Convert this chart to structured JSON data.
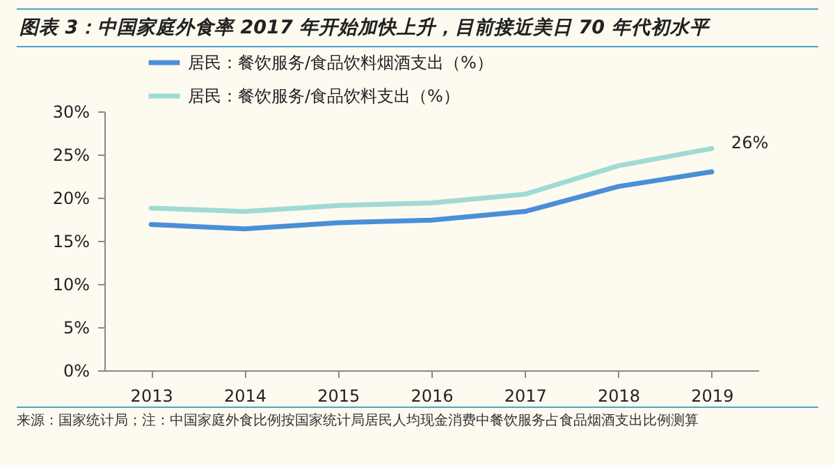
{
  "chart_data": {
    "type": "line",
    "title": "图表 3：中国家庭外食率 2017 年开始加快上升，目前接近美日 70 年代初水平",
    "categories": [
      "2013",
      "2014",
      "2015",
      "2016",
      "2017",
      "2018",
      "2019"
    ],
    "series": [
      {
        "name": "居民：餐饮服务/食品饮料烟酒支出（%）",
        "color": "#4a8fd6",
        "values": [
          16.9,
          16.4,
          17.1,
          17.4,
          18.4,
          21.3,
          23.0
        ]
      },
      {
        "name": "居民：餐饮服务/食品饮料支出（%）",
        "color": "#9fdbd4",
        "values": [
          18.8,
          18.4,
          19.1,
          19.4,
          20.4,
          23.7,
          25.7
        ]
      }
    ],
    "ylim": [
      0,
      30
    ],
    "yticks": [
      {
        "value": 0,
        "label": "0%"
      },
      {
        "value": 5,
        "label": "5%"
      },
      {
        "value": 10,
        "label": "10%"
      },
      {
        "value": 15,
        "label": "15%"
      },
      {
        "value": 20,
        "label": "20%"
      },
      {
        "value": 25,
        "label": "25%"
      },
      {
        "value": 30,
        "label": "30%"
      }
    ],
    "annotations": [
      {
        "text": "26%",
        "x": "2019",
        "y": 25.7
      },
      "来源：国家统计局；注：中国家庭外食比例按国家统计局居民人均现金消费中餐饮服务占食品烟酒支出比例测算"
    ],
    "legend": "top",
    "grid": false,
    "marker": "none",
    "line_style": "solid"
  }
}
